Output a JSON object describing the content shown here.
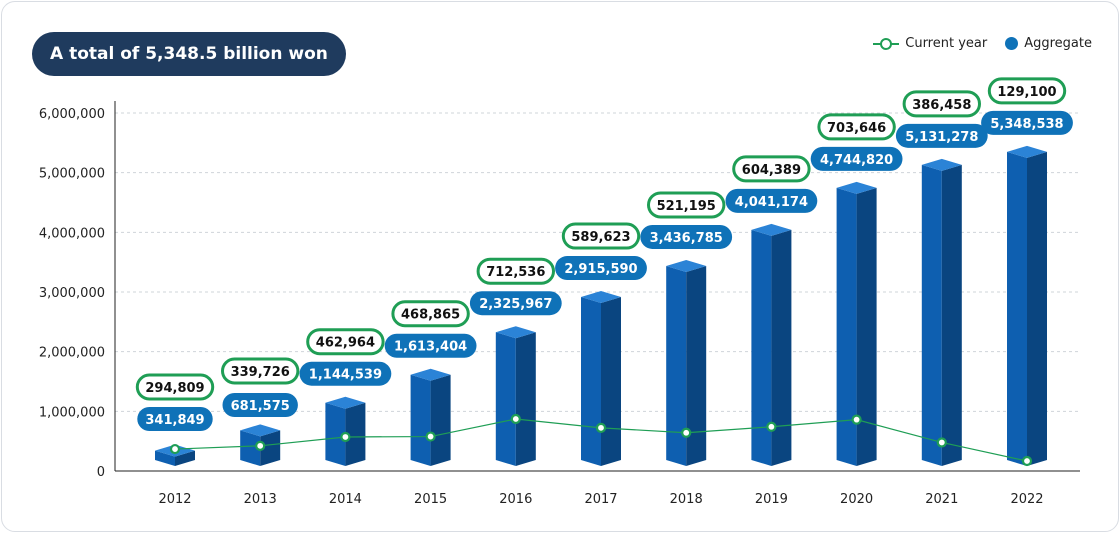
{
  "header": {
    "title": "A total of 5,348.5 billion won"
  },
  "legend": {
    "current_label": "Current year",
    "aggregate_label": "Aggregate"
  },
  "colors": {
    "bar_front": "#0e5fb0",
    "bar_side": "#0a4580",
    "bar_top": "#2b83d6",
    "line": "#1f9e55",
    "aggregate_pill": "#0f72b8",
    "current_pill_border": "#1f9e55",
    "title_pill": "#1f3b5e",
    "grid": "#cfd4da"
  },
  "chart_data": {
    "type": "bar",
    "title": "A total of 5,348.5 billion won",
    "xlabel": "",
    "ylabel": "",
    "ylim": [
      0,
      6000000
    ],
    "yticks": [
      0,
      1000000,
      2000000,
      3000000,
      4000000,
      5000000,
      6000000
    ],
    "ytick_labels": [
      "0",
      "1,000,000",
      "2,000,000",
      "3,000,000",
      "4,000,000",
      "5,000,000",
      "6,000,000"
    ],
    "grid": true,
    "legend_position": "top-right",
    "categories": [
      "2012",
      "2013",
      "2014",
      "2015",
      "2016",
      "2017",
      "2018",
      "2019",
      "2020",
      "2021",
      "2022"
    ],
    "series": [
      {
        "name": "Aggregate",
        "type": "bar",
        "values": [
          341849,
          681575,
          1144539,
          1613404,
          2325967,
          2915590,
          3436785,
          4041174,
          4744820,
          5131278,
          5348538
        ],
        "labels": [
          "341,849",
          "681,575",
          "1,144,539",
          "1,613,404",
          "2,325,967",
          "2,915,590",
          "3,436,785",
          "4,041,174",
          "4,744,820",
          "5,131,278",
          "5,348,538"
        ]
      },
      {
        "name": "Current year",
        "type": "line",
        "values": [
          294809,
          339726,
          462964,
          468865,
          712536,
          589623,
          521195,
          604389,
          703646,
          386458,
          129100
        ],
        "labels": [
          "294,809",
          "339,726",
          "462,964",
          "468,865",
          "712,536",
          "589,623",
          "521,195",
          "604,389",
          "703,646",
          "386,458",
          "129,100"
        ]
      }
    ]
  }
}
